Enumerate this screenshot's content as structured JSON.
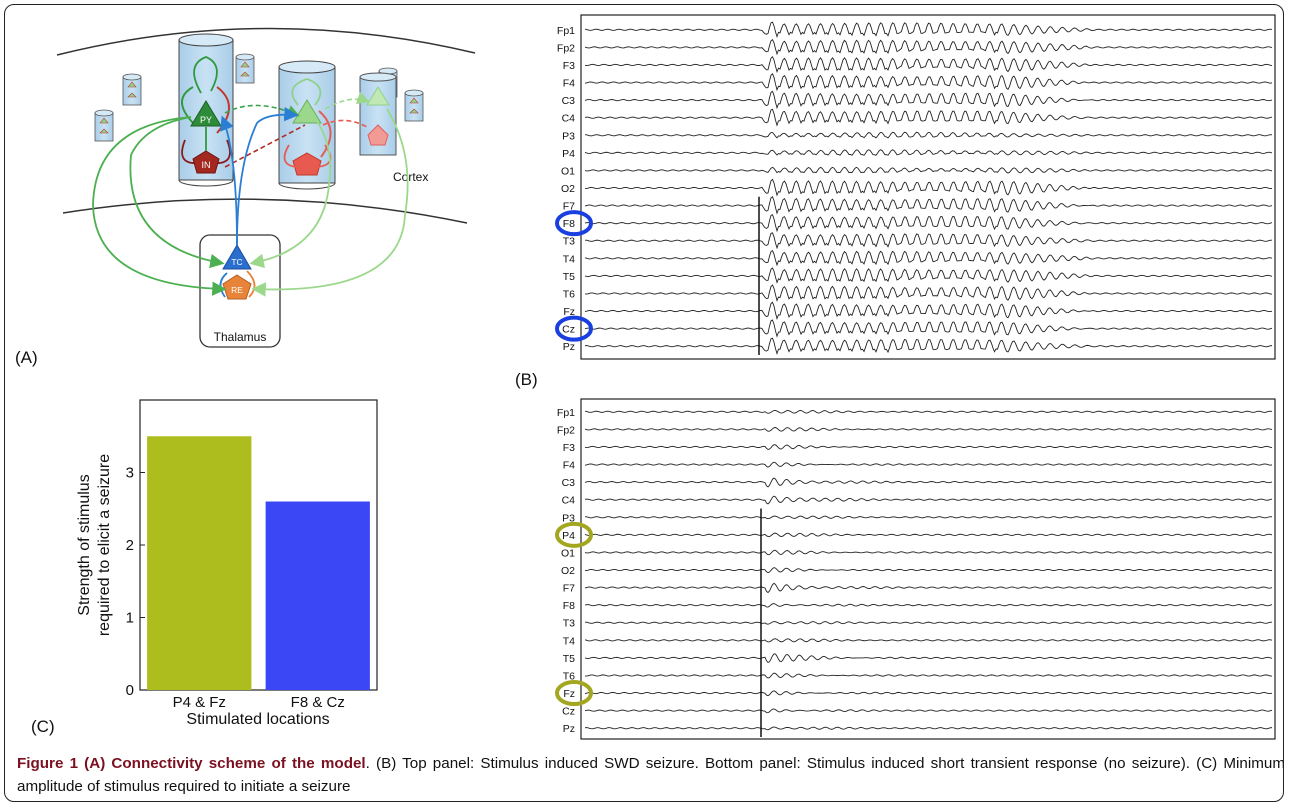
{
  "panelA": {
    "label": "(A)",
    "py_label": "PY",
    "in_label": "IN",
    "tc_label": "TC",
    "re_label": "RE",
    "cortex_label": "Cortex",
    "thalamus_label": "Thalamus"
  },
  "panelB": {
    "label": "(B)",
    "top": {
      "channels": [
        "Fp1",
        "Fp2",
        "F3",
        "F4",
        "C3",
        "C4",
        "P3",
        "P4",
        "O1",
        "O2",
        "F7",
        "F8",
        "T3",
        "T4",
        "T5",
        "T6",
        "Fz",
        "Cz",
        "Pz"
      ],
      "circled": [
        "F8",
        "Cz"
      ],
      "circle_color": "#1a3fe0"
    },
    "bottom": {
      "channels": [
        "Fp1",
        "Fp2",
        "F3",
        "F4",
        "C3",
        "C4",
        "P3",
        "P4",
        "O1",
        "O2",
        "F7",
        "F8",
        "T3",
        "T4",
        "T5",
        "T6",
        "Fz",
        "Cz",
        "Pz"
      ],
      "circled": [
        "P4",
        "Fz"
      ],
      "circle_color": "#a3a61f"
    }
  },
  "panelC": {
    "label": "(C)"
  },
  "chart_data": {
    "type": "bar",
    "categories": [
      "P4 & Fz",
      "F8 & Cz"
    ],
    "values": [
      3.5,
      2.6
    ],
    "colors": [
      "#aebd1e",
      "#3b47f5"
    ],
    "xlabel": "Stimulated locations",
    "ylabel": "Strength of stimulus required to elicit a seizure",
    "ylim": [
      0,
      4
    ],
    "yticks": [
      "0",
      "1",
      "2",
      "3"
    ],
    "grid": false
  },
  "caption": {
    "bold": "Figure 1 (A) Connectivity scheme of the model",
    "rest": ". (B) Top panel: Stimulus induced SWD seizure. Bottom panel: Stimulus induced short transient response (no seizure). (C) Minimum amplitude of stimulus required to initiate a seizure"
  }
}
